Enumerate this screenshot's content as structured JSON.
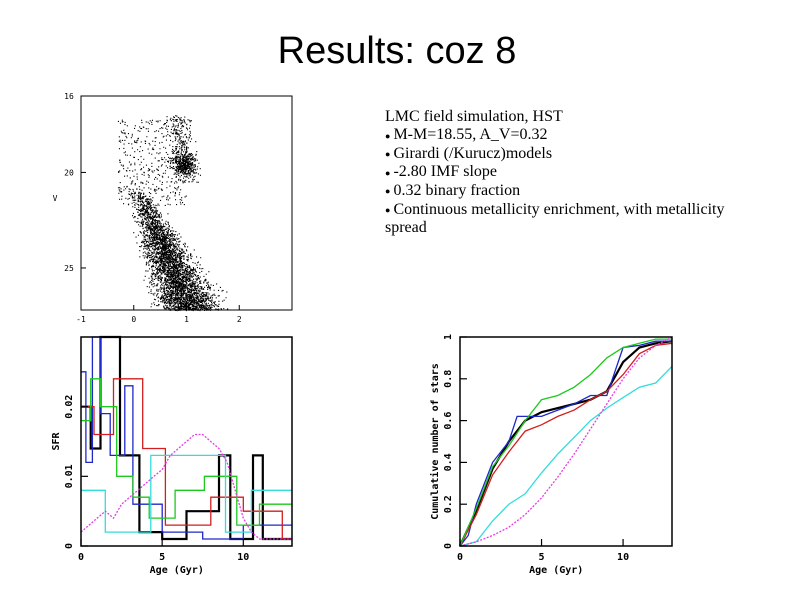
{
  "slide": {
    "title": "Results: coz 8"
  },
  "notes": {
    "heading": "LMC field simulation, HST",
    "bullets": [
      "M-M=18.55, A_V=0.32",
      "Girardi (/Kurucz)models",
      "-2.80 IMF slope",
      "0.32 binary fraction",
      "Continuous metallicity enrichment, with metallicity spread"
    ]
  },
  "chart_data": [
    {
      "type": "scatter",
      "title": "",
      "xlabel": "",
      "ylabel": "V",
      "xlim": [
        -1,
        3
      ],
      "ylim": [
        27.2,
        16
      ],
      "x_ticks": [
        "-1",
        "0",
        "1",
        "2"
      ],
      "y_ticks": [
        "16",
        "20",
        "25"
      ],
      "description_of_points": "dense stellar color-magnitude distribution: main sequence from (0.0, 21) down to (1.2, 27), red clump near (1.0, 19.5), giant branch up to (0.8, 17)"
    },
    {
      "type": "line",
      "xlabel": "Age (Gyr)",
      "ylabel": "SFR",
      "xlim": [
        0,
        13
      ],
      "ylim": [
        0,
        0.03
      ],
      "x_ticks": [
        "0",
        "5",
        "10"
      ],
      "y_ticks": [
        "0",
        "0.01",
        "0.02"
      ],
      "series": [
        {
          "name": "black",
          "color": "#000000",
          "x": [
            0,
            0.6,
            0.6,
            1.2,
            1.2,
            2.4,
            2.4,
            3.6,
            3.6,
            5,
            5,
            6.5,
            6.5,
            8.5,
            8.5,
            9.2,
            9.2,
            10.6,
            10.6,
            11.2,
            11.2,
            13
          ],
          "y": [
            0.02,
            0.02,
            0.014,
            0.014,
            0.03,
            0.03,
            0.013,
            0.013,
            0.002,
            0.002,
            0.001,
            0.001,
            0.005,
            0.005,
            0.013,
            0.013,
            0.001,
            0.001,
            0.013,
            0.013,
            0.001,
            0.001
          ]
        },
        {
          "name": "blue",
          "color": "#1e28c8",
          "x": [
            0,
            0.3,
            0.3,
            0.7,
            0.7,
            1.2,
            1.2,
            1.8,
            1.8,
            2.7,
            2.7,
            3.2,
            3.2,
            5,
            5,
            7.5,
            7.5,
            10,
            10,
            13
          ],
          "y": [
            0.025,
            0.025,
            0.012,
            0.012,
            0.03,
            0.03,
            0.019,
            0.019,
            0.013,
            0.013,
            0.023,
            0.023,
            0.006,
            0.006,
            0.002,
            0.002,
            0.001,
            0.001,
            0.003,
            0.003
          ]
        },
        {
          "name": "red",
          "color": "#d21e1e",
          "x": [
            0,
            0.8,
            0.8,
            2,
            2,
            3.8,
            3.8,
            5.2,
            5.2,
            8,
            8,
            10,
            10,
            12.4,
            12.4,
            13
          ],
          "y": [
            0.02,
            0.02,
            0.016,
            0.016,
            0.024,
            0.024,
            0.014,
            0.014,
            0.003,
            0.003,
            0.007,
            0.007,
            0.005,
            0.005,
            0.001,
            0.001
          ]
        },
        {
          "name": "green",
          "color": "#1ec81e",
          "x": [
            0,
            0.6,
            0.6,
            1.2,
            1.2,
            2.2,
            2.2,
            3.2,
            3.2,
            4.2,
            4.2,
            5.8,
            5.8,
            7.6,
            7.6,
            9.6,
            9.6,
            11,
            11,
            13
          ],
          "y": [
            0.018,
            0.018,
            0.024,
            0.024,
            0.02,
            0.02,
            0.01,
            0.01,
            0.007,
            0.007,
            0.004,
            0.004,
            0.008,
            0.008,
            0.01,
            0.01,
            0.003,
            0.003,
            0.006,
            0.006
          ]
        },
        {
          "name": "cyan",
          "color": "#32dcdc",
          "x": [
            0,
            1.5,
            1.5,
            4.3,
            4.3,
            8.9,
            8.9,
            10.5,
            10.5,
            13
          ],
          "y": [
            0.008,
            0.008,
            0.002,
            0.002,
            0.013,
            0.013,
            0.002,
            0.002,
            0.008,
            0.008
          ]
        },
        {
          "name": "magenta",
          "color": "#e63ce6",
          "x": [
            0,
            0.5,
            1,
            1.5,
            2,
            2.5,
            3,
            3.5,
            4,
            4.5,
            5,
            5.5,
            6,
            6.5,
            7,
            7.5,
            8,
            8.5,
            9,
            9.5,
            10,
            10.5,
            11,
            12,
            13
          ],
          "y": [
            0.002,
            0.003,
            0.004,
            0.005,
            0.004,
            0.006,
            0.007,
            0.008,
            0.009,
            0.01,
            0.011,
            0.013,
            0.014,
            0.015,
            0.016,
            0.016,
            0.015,
            0.014,
            0.012,
            0.008,
            0.004,
            0.002,
            0.001,
            0.001,
            0.001
          ]
        }
      ]
    },
    {
      "type": "line",
      "xlabel": "Age (Gyr)",
      "ylabel": "Cumulative number of stars",
      "xlim": [
        0,
        13
      ],
      "ylim": [
        0,
        1
      ],
      "x_ticks": [
        "0",
        "5",
        "10"
      ],
      "y_ticks": [
        "0",
        "0.2",
        "0.4",
        "0.6",
        "0.8",
        "1"
      ],
      "series": [
        {
          "name": "black",
          "color": "#000000",
          "x": [
            0,
            1,
            2,
            3,
            4,
            5,
            6,
            7,
            8,
            9,
            10,
            11,
            12,
            13
          ],
          "y": [
            0,
            0.17,
            0.37,
            0.5,
            0.6,
            0.64,
            0.66,
            0.68,
            0.7,
            0.74,
            0.88,
            0.95,
            0.97,
            0.98
          ]
        },
        {
          "name": "blue",
          "color": "#1e28c8",
          "x": [
            0,
            0.5,
            1,
            2,
            3,
            3.5,
            5,
            7,
            8,
            9,
            10,
            11,
            12,
            13
          ],
          "y": [
            0,
            0.05,
            0.2,
            0.4,
            0.5,
            0.62,
            0.62,
            0.68,
            0.72,
            0.72,
            0.95,
            0.96,
            0.98,
            0.98
          ]
        },
        {
          "name": "red",
          "color": "#d21e1e",
          "x": [
            0,
            1,
            2,
            3,
            4,
            5,
            6,
            7,
            8,
            9,
            10,
            11,
            12,
            13
          ],
          "y": [
            0,
            0.15,
            0.34,
            0.45,
            0.55,
            0.58,
            0.62,
            0.65,
            0.7,
            0.74,
            0.82,
            0.92,
            0.96,
            0.97
          ]
        },
        {
          "name": "green",
          "color": "#1ec81e",
          "x": [
            0,
            1,
            2,
            3,
            4,
            5,
            6,
            7,
            8,
            9,
            10,
            11,
            12,
            13
          ],
          "y": [
            0,
            0.18,
            0.38,
            0.48,
            0.6,
            0.7,
            0.72,
            0.76,
            0.82,
            0.9,
            0.95,
            0.97,
            0.99,
            0.99
          ]
        },
        {
          "name": "cyan",
          "color": "#32dcdc",
          "x": [
            0,
            1,
            2,
            3,
            4,
            5,
            6,
            7,
            8,
            9,
            10,
            11,
            12,
            13
          ],
          "y": [
            0,
            0.02,
            0.12,
            0.2,
            0.25,
            0.35,
            0.44,
            0.52,
            0.6,
            0.66,
            0.71,
            0.76,
            0.78,
            0.86
          ]
        },
        {
          "name": "magenta",
          "color": "#e63ce6",
          "x": [
            0,
            1,
            2,
            3,
            4,
            5,
            6,
            7,
            8,
            9,
            10,
            11,
            12,
            13
          ],
          "y": [
            0,
            0.02,
            0.05,
            0.09,
            0.15,
            0.23,
            0.33,
            0.44,
            0.56,
            0.68,
            0.8,
            0.9,
            0.96,
            1.0
          ]
        }
      ]
    }
  ]
}
